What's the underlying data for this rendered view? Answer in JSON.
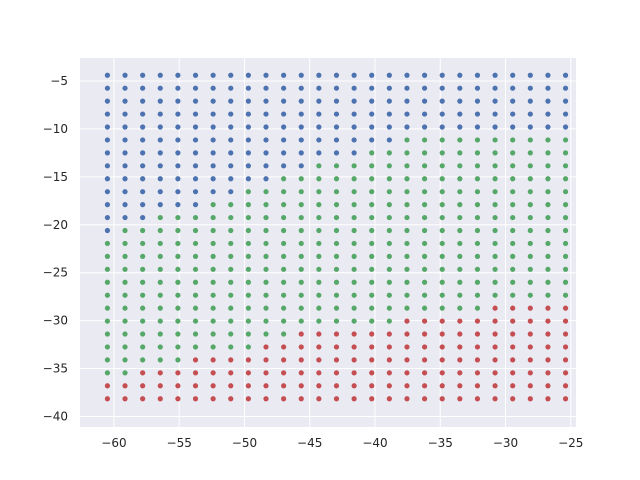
{
  "chart_data": {
    "type": "scatter",
    "title": "",
    "xlabel": "",
    "ylabel": "",
    "xlim": [
      -62.6,
      -24.6
    ],
    "ylim": [
      -41.1,
      -2.6
    ],
    "grid": true,
    "style": "seaborn-darkgrid",
    "x_ticks": [
      -60,
      -55,
      -50,
      -45,
      -40,
      -35,
      -30,
      -25
    ],
    "y_ticks": [
      -5,
      -10,
      -15,
      -20,
      -25,
      -30,
      -35,
      -40
    ],
    "x_tick_labels": [
      "−60",
      "−55",
      "−50",
      "−45",
      "−40",
      "−35",
      "−30",
      "−25"
    ],
    "y_tick_labels": [
      "−5",
      "−10",
      "−15",
      "−20",
      "−25",
      "−30",
      "−35",
      "−40"
    ],
    "grid_points": {
      "x_start": -60.5,
      "x_step": 1.35,
      "x_count": 27,
      "y_start": -4.4,
      "y_step": -1.35,
      "y_count": 26
    },
    "marker_size": 2.6,
    "series": [
      {
        "color": "#4c72b0",
        "region": "points above the blue/green boundary",
        "boundary_by_column": [
          -21.8,
          -20.4,
          -20.4,
          -19.1,
          -19.1,
          -19.1,
          -17.7,
          -17.7,
          -16.4,
          -16.4,
          -15.0,
          -15.0,
          -13.7,
          -13.7,
          -13.7,
          -12.3,
          -12.3,
          -10.9,
          -10.9,
          -10.9,
          -10.9,
          -10.9,
          -10.9,
          -10.9,
          -10.9,
          -10.9,
          -10.9
        ]
      },
      {
        "color": "#55a868",
        "region": "points between the two boundaries"
      },
      {
        "color": "#c44e52",
        "region": "points below the green/red boundary",
        "boundary_by_column": [
          -36.6,
          -36.6,
          -35.3,
          -35.3,
          -35.3,
          -33.9,
          -33.9,
          -33.9,
          -33.9,
          -32.5,
          -32.5,
          -31.2,
          -31.2,
          -31.2,
          -31.2,
          -31.2,
          -31.2,
          -29.8,
          -29.8,
          -29.8,
          -29.8,
          -29.8,
          -28.5,
          -28.5,
          -28.5,
          -28.5,
          -28.5
        ]
      }
    ]
  }
}
